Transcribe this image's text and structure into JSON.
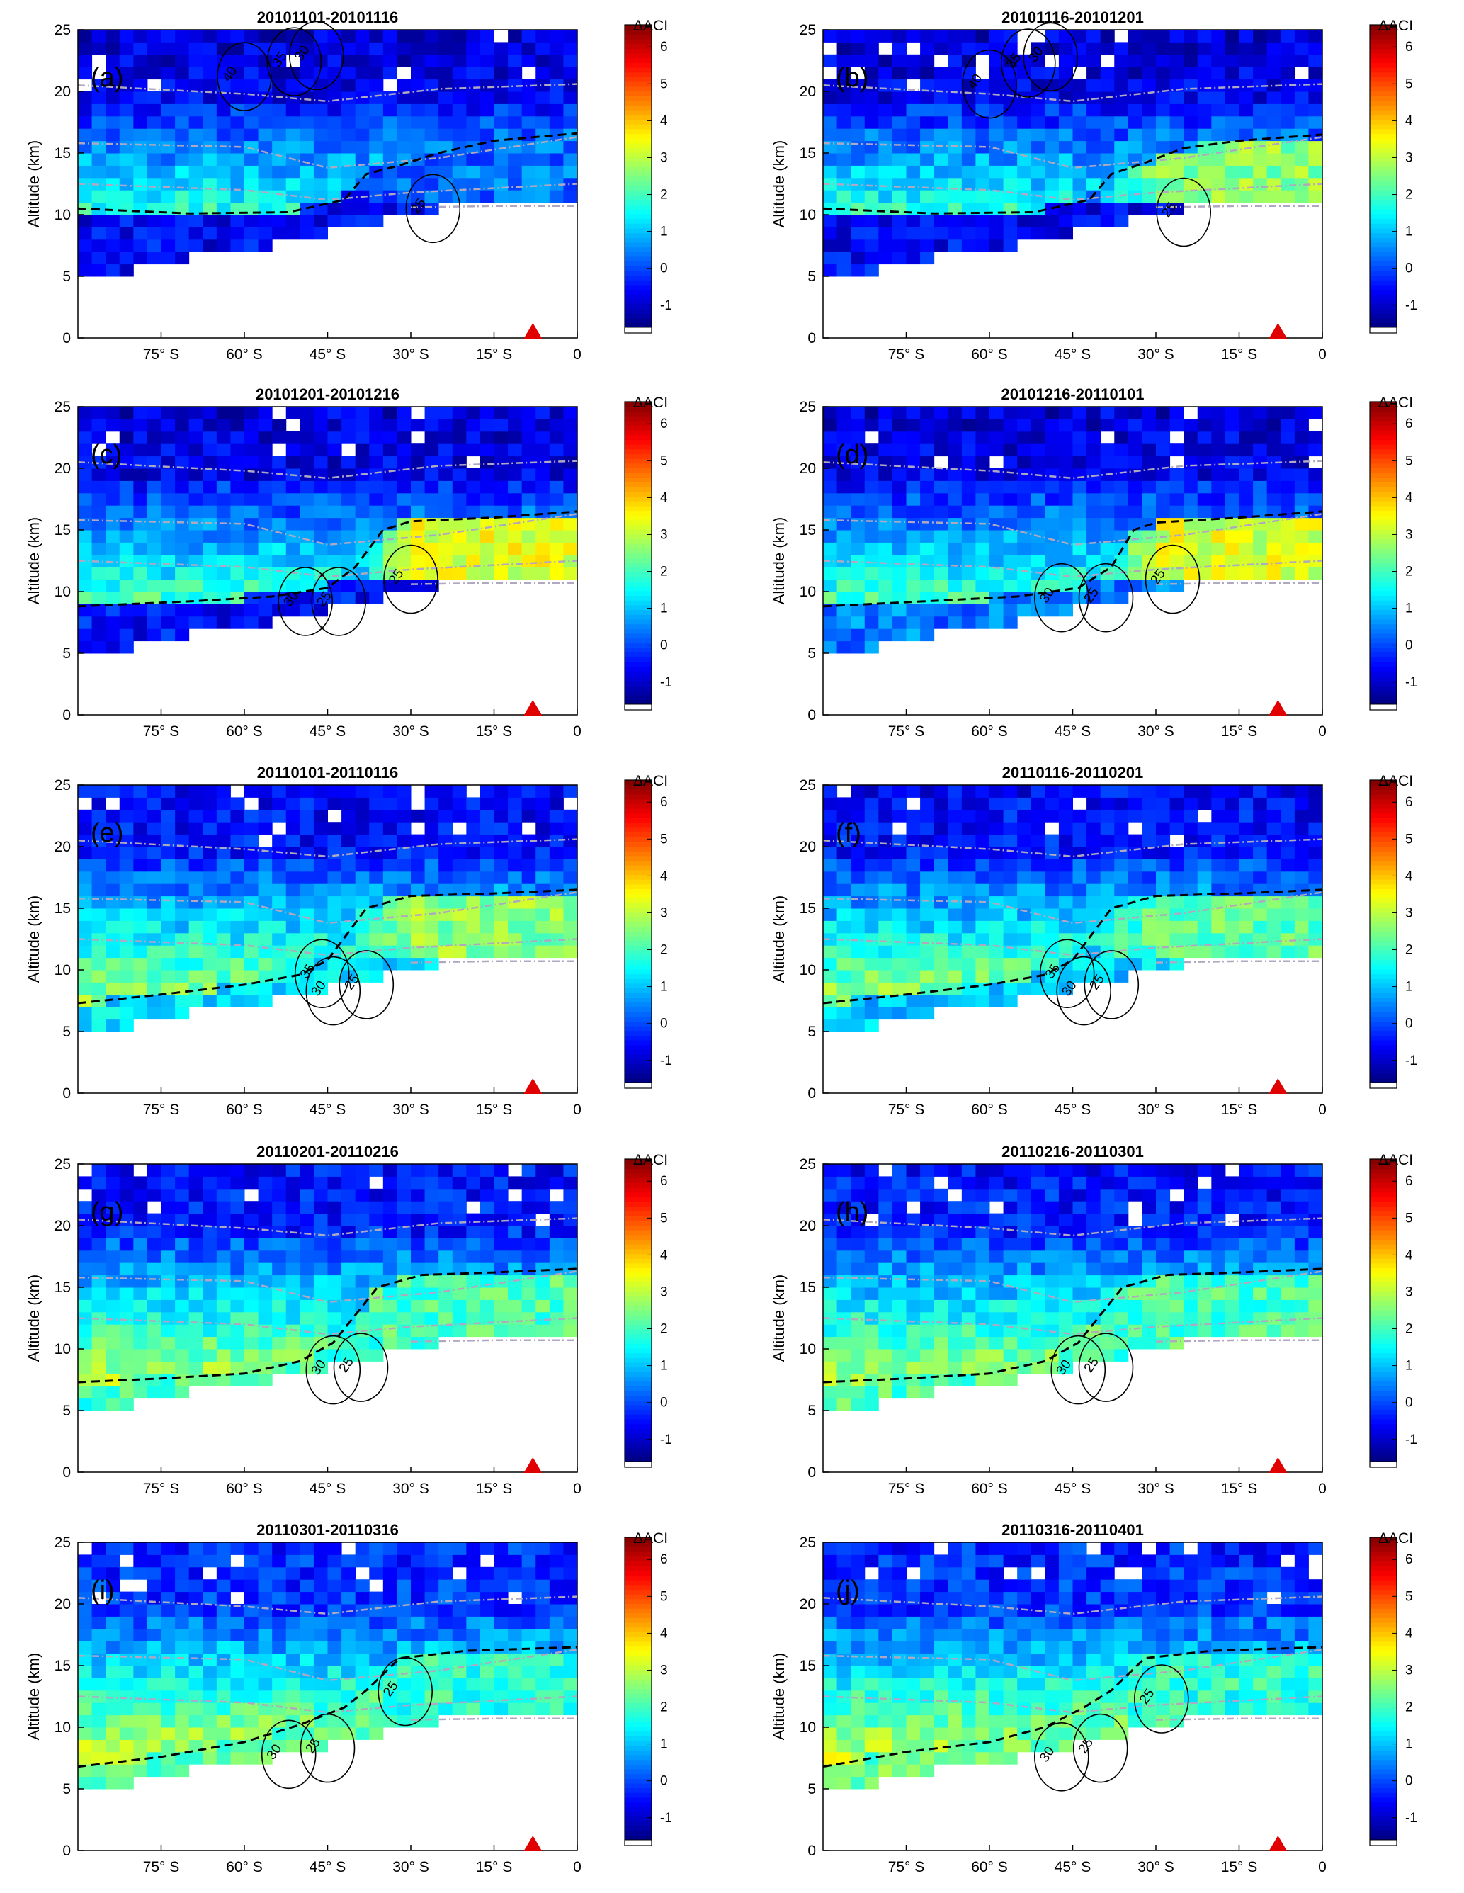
{
  "figure": {
    "colorbar": {
      "label": "ΔACI",
      "ticks": [
        -1,
        0,
        1,
        2,
        3,
        4,
        5,
        6
      ],
      "range": [
        -1.6,
        6.6
      ]
    },
    "common_axes": {
      "ylabel": "Altitude (km)",
      "ylim": [
        0,
        25
      ],
      "yticks": [
        0,
        5,
        10,
        15,
        20,
        25
      ],
      "xlim": [
        -90,
        0
      ],
      "xticks": [
        {
          "value": -75,
          "label": "75°  S"
        },
        {
          "value": -60,
          "label": "60°  S"
        },
        {
          "value": -45,
          "label": "45°  S"
        },
        {
          "value": -30,
          "label": "30°  S"
        },
        {
          "value": -15,
          "label": "15°  S"
        },
        {
          "value": 0,
          "label": "0"
        }
      ],
      "marker": {
        "type": "triangle",
        "color": "#e00000",
        "lat": -8,
        "alt": 0
      }
    }
  },
  "chart_data": [
    {
      "type": "heatmap",
      "panel": "(a)",
      "title": "20101101-20101116",
      "params": {
        "hiAlt": 13,
        "hiVal": 0.3,
        "loVal": -0.6,
        "bgVal": -0.9,
        "trDrop": 0.3
      },
      "tropopause_dash": [
        [
          -90,
          10.5
        ],
        [
          -70,
          10.1
        ],
        [
          -52,
          10.2
        ],
        [
          -42,
          11.2
        ],
        [
          -38,
          13.3
        ],
        [
          -32,
          14.0
        ],
        [
          -25,
          15.0
        ],
        [
          -15,
          16.0
        ],
        [
          0,
          16.6
        ]
      ],
      "contour_labels": [
        {
          "text": "40",
          "lat": -62,
          "alt": 21.2
        },
        {
          "text": "35",
          "lat": -53,
          "alt": 22.4
        },
        {
          "text": "30",
          "lat": -49,
          "alt": 22.9
        },
        {
          "text": "25",
          "lat": -28,
          "alt": 10.5
        }
      ]
    },
    {
      "type": "heatmap",
      "panel": "(b)",
      "title": "20101116-20101201",
      "params": {
        "hiAlt": 13.5,
        "hiVal": 2.6,
        "loVal": -0.6,
        "bgVal": -0.9,
        "trDrop": 0.3
      },
      "tropopause_dash": [
        [
          -90,
          10.5
        ],
        [
          -70,
          10.1
        ],
        [
          -52,
          10.2
        ],
        [
          -42,
          11.2
        ],
        [
          -38,
          13.3
        ],
        [
          -32,
          14.2
        ],
        [
          -25,
          15.4
        ],
        [
          -15,
          16.0
        ],
        [
          0,
          16.5
        ]
      ],
      "contour_labels": [
        {
          "text": "40",
          "lat": -62,
          "alt": 20.6
        },
        {
          "text": "35",
          "lat": -55,
          "alt": 22.3
        },
        {
          "text": "30",
          "lat": -51,
          "alt": 22.8
        },
        {
          "text": "25",
          "lat": -27,
          "alt": 10.2
        }
      ]
    },
    {
      "type": "heatmap",
      "panel": "(c)",
      "title": "20101201-20101216",
      "params": {
        "hiAlt": 13.5,
        "hiVal": 3.3,
        "loVal": -0.5,
        "bgVal": -0.9,
        "trDrop": 0.3
      },
      "tropopause_dash": [
        [
          -90,
          8.8
        ],
        [
          -70,
          9.2
        ],
        [
          -55,
          9.6
        ],
        [
          -45,
          10.3
        ],
        [
          -40,
          12.0
        ],
        [
          -35,
          15.0
        ],
        [
          -30,
          15.7
        ],
        [
          -15,
          16.0
        ],
        [
          0,
          16.5
        ]
      ],
      "contour_labels": [
        {
          "text": "30",
          "lat": -51,
          "alt": 9.2
        },
        {
          "text": "25",
          "lat": -45,
          "alt": 9.2
        },
        {
          "text": "25",
          "lat": -32,
          "alt": 11.0
        }
      ]
    },
    {
      "type": "heatmap",
      "panel": "(d)",
      "title": "20101216-20110101",
      "params": {
        "hiAlt": 14,
        "hiVal": 3.2,
        "loVal": 0.4,
        "bgVal": -0.9,
        "trDrop": 0.3
      },
      "tropopause_dash": [
        [
          -90,
          8.8
        ],
        [
          -72,
          9.2
        ],
        [
          -55,
          9.6
        ],
        [
          -44,
          10.3
        ],
        [
          -38,
          12.0
        ],
        [
          -34,
          15.0
        ],
        [
          -30,
          15.6
        ],
        [
          -15,
          16.0
        ],
        [
          0,
          16.5
        ]
      ],
      "contour_labels": [
        {
          "text": "30",
          "lat": -49,
          "alt": 9.5
        },
        {
          "text": "25",
          "lat": -41,
          "alt": 9.5
        },
        {
          "text": "25",
          "lat": -29,
          "alt": 11.0
        }
      ]
    },
    {
      "type": "heatmap",
      "panel": "(e)",
      "title": "20110101-20110116",
      "params": {
        "hiAlt": 13.5,
        "hiVal": 2.6,
        "loVal": 1.2,
        "bgVal": -0.6,
        "trDrop": 0.4
      },
      "tropopause_dash": [
        [
          -90,
          7.3
        ],
        [
          -75,
          8.0
        ],
        [
          -60,
          8.8
        ],
        [
          -50,
          9.6
        ],
        [
          -45,
          10.8
        ],
        [
          -38,
          15.0
        ],
        [
          -30,
          16.0
        ],
        [
          -15,
          16.2
        ],
        [
          0,
          16.5
        ]
      ],
      "contour_labels": [
        {
          "text": "35",
          "lat": -48,
          "alt": 9.7
        },
        {
          "text": "30",
          "lat": -46,
          "alt": 8.3
        },
        {
          "text": "25",
          "lat": -40,
          "alt": 8.8
        }
      ]
    },
    {
      "type": "heatmap",
      "panel": "(f)",
      "title": "20110116-20110201",
      "params": {
        "hiAlt": 13.5,
        "hiVal": 2.2,
        "loVal": 1.1,
        "bgVal": -0.6,
        "trDrop": 0.4
      },
      "tropopause_dash": [
        [
          -90,
          7.3
        ],
        [
          -75,
          8.0
        ],
        [
          -60,
          8.8
        ],
        [
          -50,
          9.6
        ],
        [
          -45,
          10.8
        ],
        [
          -38,
          15.0
        ],
        [
          -30,
          16.0
        ],
        [
          -15,
          16.2
        ],
        [
          0,
          16.5
        ]
      ],
      "contour_labels": [
        {
          "text": "35",
          "lat": -48,
          "alt": 9.7
        },
        {
          "text": "30",
          "lat": -45,
          "alt": 8.3
        },
        {
          "text": "25",
          "lat": -40,
          "alt": 8.8
        }
      ]
    },
    {
      "type": "heatmap",
      "panel": "(g)",
      "title": "20110201-20110216",
      "params": {
        "hiAlt": 12,
        "hiVal": 2.1,
        "loVal": 2.0,
        "bgVal": -0.5,
        "trDrop": 0.5
      },
      "tropopause_dash": [
        [
          -90,
          7.3
        ],
        [
          -75,
          7.6
        ],
        [
          -60,
          8.0
        ],
        [
          -50,
          9.0
        ],
        [
          -44,
          10.5
        ],
        [
          -36,
          15.0
        ],
        [
          -28,
          16.0
        ],
        [
          -15,
          16.2
        ],
        [
          0,
          16.5
        ]
      ],
      "contour_labels": [
        {
          "text": "30",
          "lat": -46,
          "alt": 8.3
        },
        {
          "text": "25",
          "lat": -41,
          "alt": 8.5
        }
      ]
    },
    {
      "type": "heatmap",
      "panel": "(h)",
      "title": "20110216-20110301",
      "params": {
        "hiAlt": 12,
        "hiVal": 2.0,
        "loVal": 2.1,
        "bgVal": -0.5,
        "trDrop": 0.5
      },
      "tropopause_dash": [
        [
          -90,
          7.3
        ],
        [
          -75,
          7.6
        ],
        [
          -60,
          8.0
        ],
        [
          -50,
          9.0
        ],
        [
          -44,
          10.5
        ],
        [
          -36,
          15.0
        ],
        [
          -28,
          16.0
        ],
        [
          -15,
          16.2
        ],
        [
          0,
          16.5
        ]
      ],
      "contour_labels": [
        {
          "text": "30",
          "lat": -46,
          "alt": 8.3
        },
        {
          "text": "25",
          "lat": -41,
          "alt": 8.5
        }
      ]
    },
    {
      "type": "heatmap",
      "panel": "(i)",
      "title": "20110301-20110316",
      "params": {
        "hiAlt": 12,
        "hiVal": 1.8,
        "loVal": 2.3,
        "bgVal": -0.3,
        "trDrop": 0.6
      },
      "tropopause_dash": [
        [
          -90,
          6.8
        ],
        [
          -75,
          7.6
        ],
        [
          -60,
          8.8
        ],
        [
          -50,
          10.2
        ],
        [
          -42,
          11.6
        ],
        [
          -38,
          13.0
        ],
        [
          -32,
          15.6
        ],
        [
          -20,
          16.2
        ],
        [
          0,
          16.5
        ]
      ],
      "contour_labels": [
        {
          "text": "30",
          "lat": -54,
          "alt": 7.8
        },
        {
          "text": "25",
          "lat": -47,
          "alt": 8.3
        },
        {
          "text": "25",
          "lat": -33,
          "alt": 12.9
        }
      ]
    },
    {
      "type": "heatmap",
      "panel": "(j)",
      "title": "20110316-20110401",
      "params": {
        "hiAlt": 12,
        "hiVal": 1.8,
        "loVal": 2.3,
        "bgVal": -0.3,
        "trDrop": 0.6
      },
      "tropopause_dash": [
        [
          -90,
          6.8
        ],
        [
          -75,
          8.0
        ],
        [
          -60,
          8.8
        ],
        [
          -50,
          10.0
        ],
        [
          -43,
          11.6
        ],
        [
          -38,
          13.0
        ],
        [
          -32,
          15.6
        ],
        [
          -20,
          16.2
        ],
        [
          0,
          16.5
        ]
      ],
      "contour_labels": [
        {
          "text": "30",
          "lat": -49,
          "alt": 7.6
        },
        {
          "text": "25",
          "lat": -42,
          "alt": 8.3
        },
        {
          "text": "25",
          "lat": -31,
          "alt": 12.3
        }
      ]
    }
  ]
}
